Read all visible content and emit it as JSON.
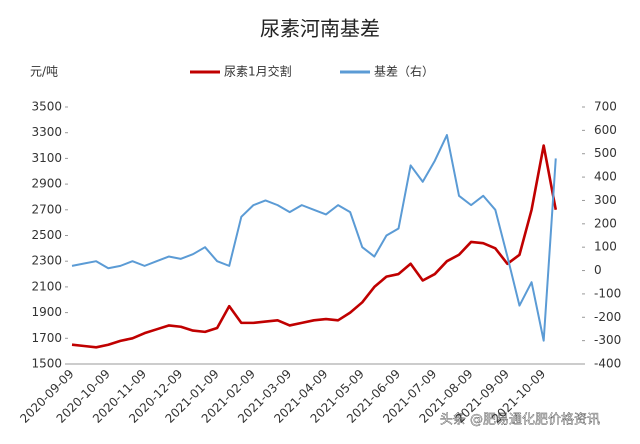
{
  "chart_data": {
    "type": "line",
    "title": "尿素河南基差",
    "y_unit": "元/吨",
    "categories": [
      "2020-09-09",
      null,
      null,
      "2020-10-09",
      null,
      null,
      "2020-11-09",
      null,
      null,
      "2020-12-09",
      null,
      null,
      "2021-01-09",
      null,
      null,
      "2021-02-09",
      null,
      null,
      "2021-03-09",
      null,
      null,
      "2021-04-09",
      null,
      null,
      "2021-05-09",
      null,
      null,
      "2021-06-09",
      null,
      null,
      "2021-07-09",
      null,
      null,
      "2021-08-09",
      null,
      null,
      "2021-09-09",
      null,
      null,
      "2021-10-09",
      null
    ],
    "series": [
      {
        "name": "尿素1月交割",
        "color": "#c00000",
        "values": [
          1650,
          1640,
          1630,
          1650,
          1680,
          1700,
          1740,
          1770,
          1800,
          1790,
          1760,
          1750,
          1780,
          1950,
          1820,
          1820,
          1830,
          1840,
          1800,
          1820,
          1840,
          1850,
          1840,
          1900,
          1980,
          2100,
          2180,
          2200,
          2280,
          2150,
          2200,
          2300,
          2350,
          2450,
          2440,
          2400,
          2280,
          2350,
          2700,
          3200,
          2700
        ]
      },
      {
        "name": "基差（右）",
        "color": "#5b9bd5",
        "axis": "y2",
        "values": [
          20,
          30,
          40,
          10,
          20,
          40,
          20,
          40,
          60,
          50,
          70,
          100,
          40,
          20,
          230,
          280,
          300,
          280,
          250,
          280,
          260,
          240,
          280,
          250,
          100,
          60,
          150,
          180,
          450,
          380,
          470,
          580,
          320,
          280,
          320,
          260,
          60,
          -150,
          -50,
          -300,
          480
        ]
      }
    ],
    "ylim": [
      1500,
      3500
    ],
    "yticks": [
      1500,
      1700,
      1900,
      2100,
      2300,
      2500,
      2700,
      2900,
      3100,
      3300,
      3500
    ],
    "y2lim": [
      -400,
      700
    ],
    "y2ticks": [
      -400,
      -300,
      -200,
      -100,
      0,
      100,
      200,
      300,
      400,
      500,
      600,
      700
    ],
    "watermark": "头条 @肥易通化肥价格资讯"
  }
}
